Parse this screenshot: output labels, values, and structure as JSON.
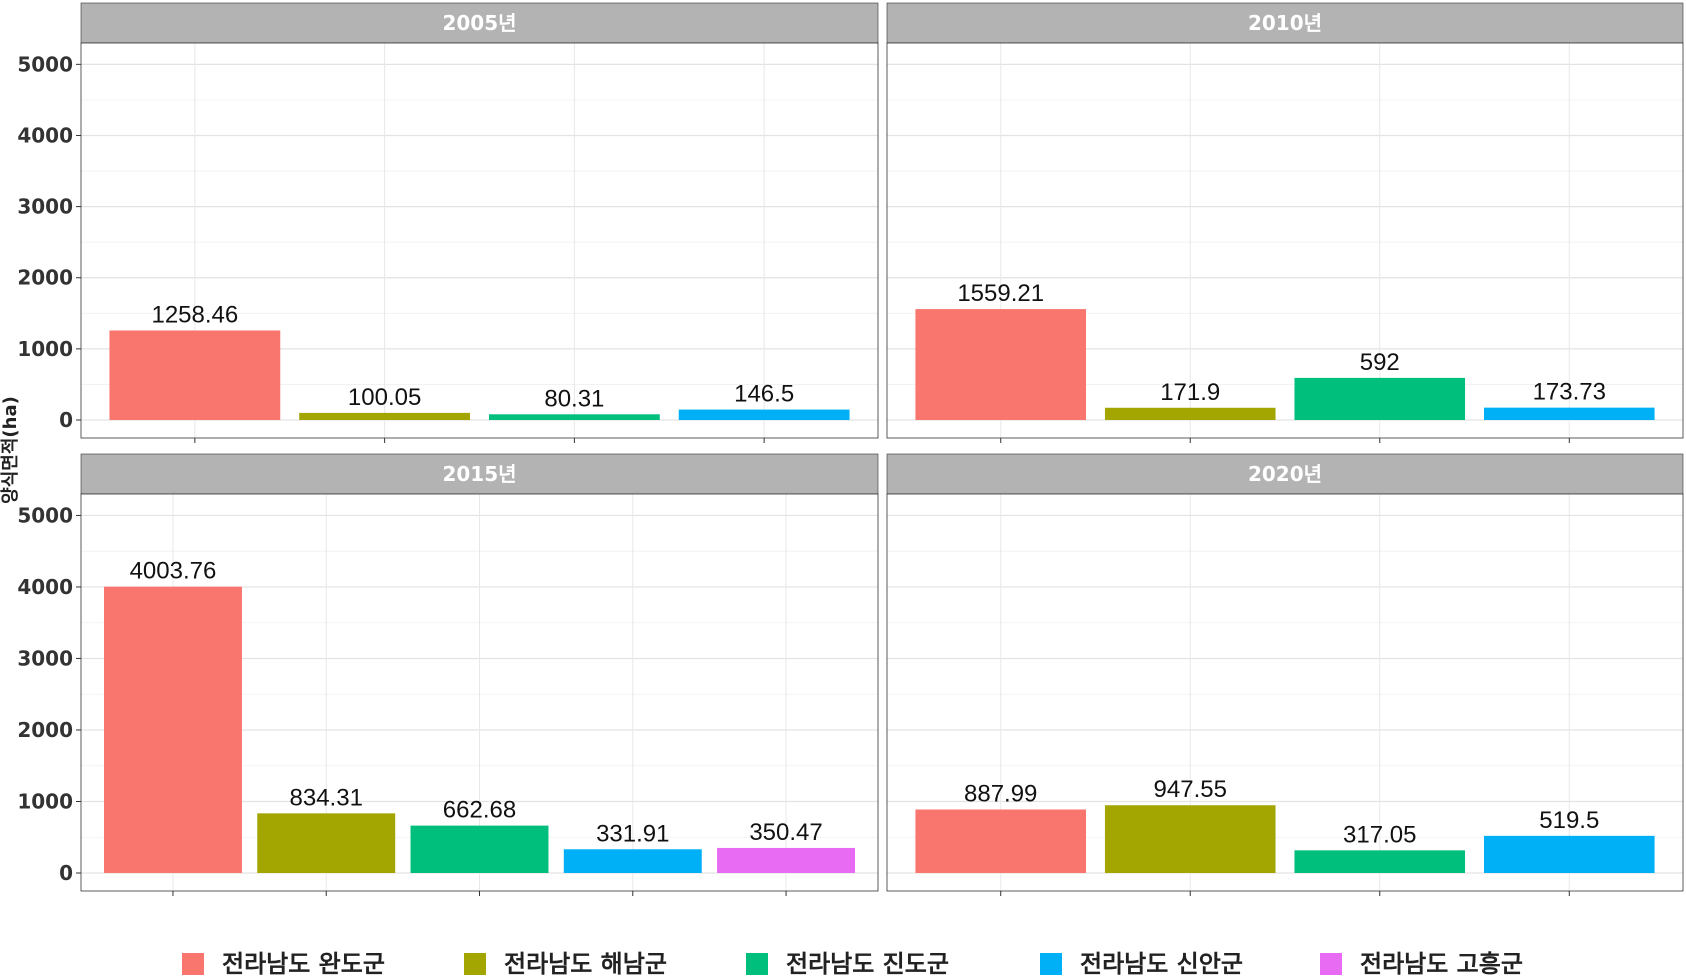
{
  "chart_data": {
    "type": "bar",
    "ylabel": "양식면적(ha)",
    "ylim": [
      0,
      5300
    ],
    "yticks": [
      0,
      1000,
      2000,
      3000,
      4000,
      5000
    ],
    "grid": true,
    "legend_position": "bottom",
    "series": [
      {
        "name": "전라남도 완도군",
        "color": "#F8766D"
      },
      {
        "name": "전라남도 해남군",
        "color": "#A3A500"
      },
      {
        "name": "전라남도 진도군",
        "color": "#00BF7D"
      },
      {
        "name": "전라남도 신안군",
        "color": "#00B0F6"
      },
      {
        "name": "전라남도 고흥군",
        "color": "#E76BF3"
      }
    ],
    "panels": [
      {
        "title": "2005년",
        "bars": [
          {
            "series": "전라남도 완도군",
            "value": 1258.46,
            "label": "1258.46"
          },
          {
            "series": "전라남도 해남군",
            "value": 100.05,
            "label": "100.05"
          },
          {
            "series": "전라남도 진도군",
            "value": 80.31,
            "label": "80.31"
          },
          {
            "series": "전라남도 신안군",
            "value": 146.5,
            "label": "146.5"
          }
        ]
      },
      {
        "title": "2010년",
        "bars": [
          {
            "series": "전라남도 완도군",
            "value": 1559.21,
            "label": "1559.21"
          },
          {
            "series": "전라남도 해남군",
            "value": 171.9,
            "label": "171.9"
          },
          {
            "series": "전라남도 진도군",
            "value": 592,
            "label": "592"
          },
          {
            "series": "전라남도 신안군",
            "value": 173.73,
            "label": "173.73"
          }
        ]
      },
      {
        "title": "2015년",
        "bars": [
          {
            "series": "전라남도 완도군",
            "value": 4003.76,
            "label": "4003.76"
          },
          {
            "series": "전라남도 해남군",
            "value": 834.31,
            "label": "834.31"
          },
          {
            "series": "전라남도 진도군",
            "value": 662.68,
            "label": "662.68"
          },
          {
            "series": "전라남도 신안군",
            "value": 331.91,
            "label": "331.91"
          },
          {
            "series": "전라남도 고흥군",
            "value": 350.47,
            "label": "350.47"
          }
        ]
      },
      {
        "title": "2020년",
        "bars": [
          {
            "series": "전라남도 완도군",
            "value": 887.99,
            "label": "887.99"
          },
          {
            "series": "전라남도 해남군",
            "value": 947.55,
            "label": "947.55"
          },
          {
            "series": "전라남도 진도군",
            "value": 317.05,
            "label": "317.05"
          },
          {
            "series": "전라남도 신안군",
            "value": 519.5,
            "label": "519.5"
          }
        ]
      }
    ]
  }
}
